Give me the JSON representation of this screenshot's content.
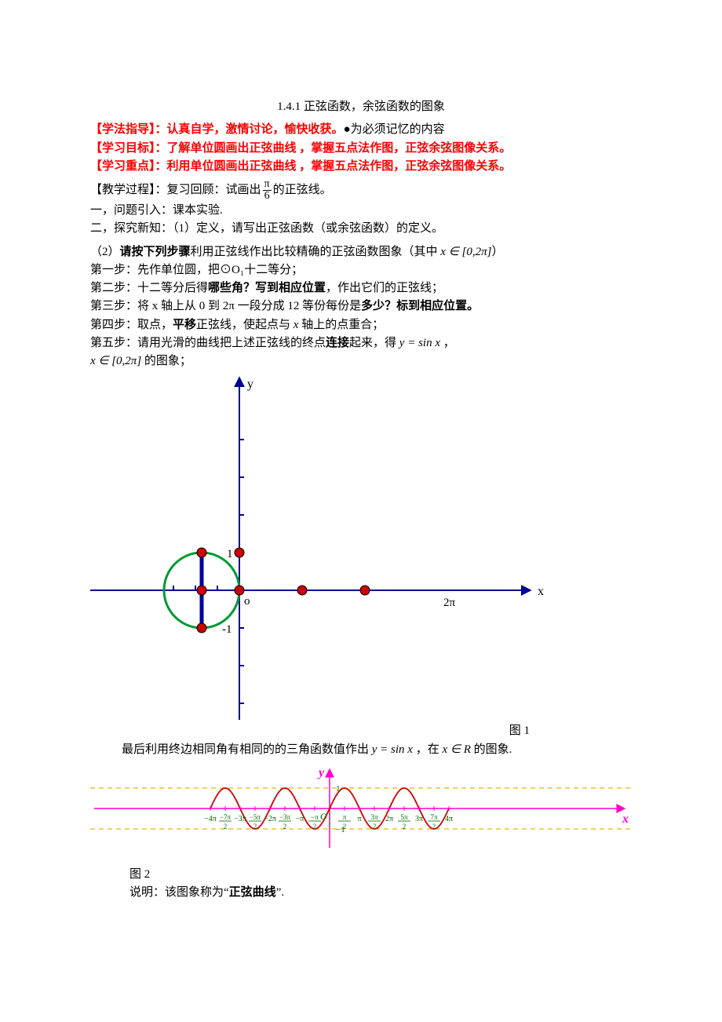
{
  "title": "1.4.1 正弦函数，余弦函数的图象",
  "header": {
    "method_guide_label": "【学法指导】：",
    "method_guide_text": "认真自学，激情讨论，愉快收获。",
    "memory_mark": "●",
    "memory_text": "为必须记忆的内容",
    "objective_label": "【学习目标】：",
    "objective_text": "了解单位圆画出正弦曲线 ，掌握五点法作图，正弦余弦图像关系。",
    "focus_label": "【学习重点】：",
    "focus_text": "利用单位圆画出正弦曲线 ，掌握五点法作图，正弦余弦图像关系。",
    "process_label": "【教学过程】：",
    "process_text_a": "复习回顾：试画出",
    "process_text_b": "的正弦线。",
    "frac_num": "π",
    "frac_den": "6",
    "intro1": "一，问题引入：课本实验.",
    "intro2": "二，探究新知：（1）定义，请写出正弦函数（或余弦函数）的定义。"
  },
  "steps": {
    "lead_a": "（2）",
    "lead_b": "请按下列步骤",
    "lead_c": "利用正弦线作出比较精确的正弦函数图象（其中 ",
    "lead_d": "）",
    "domain1": "x ∈ [0,2π]",
    "s1": "第一步：先作单位圆，把⊙O₁十二等分；",
    "s2a": "第二步：十二等分后得",
    "s2b": "哪些角？写到相应位置",
    "s2c": "，作出它们的正弦线；",
    "s3a": "第三步：将 x 轴上从 0 到 2π 一段分成 12 等份每份是",
    "s3b": "多少？标到相应位置。",
    "s4a": "第四步：取点，",
    "s4b": "平移",
    "s4c": "正弦线，使起点与 ",
    "s4d": " 轴上的点重合；",
    "s4x": "x",
    "s5a": "第五步：请用光滑的曲线把上述正弦线的终点",
    "s5b": "连接",
    "s5c": "起来，得 ",
    "s5eq": "y = sin x",
    "s5d": " ，",
    "s6a": " 的图象；",
    "domain2": "x ∈ [0,2π]"
  },
  "figure1": {
    "caption": "图 1",
    "axis_y": "y",
    "axis_x": "x",
    "label_o": "o",
    "label_1": "1",
    "label_m1": "-1",
    "label_2pi": "2π",
    "colors": {
      "axis": "#000099",
      "circle": "#009933",
      "point_fill": "#cc0000",
      "point_stroke": "#000000",
      "origin_fill": "#ffffff"
    }
  },
  "after_fig1": {
    "text_a": "最后利用终边相同角有相同的的三角函数值作出 ",
    "eq": "y = sin x",
    "text_b": " ，在 ",
    "domain": "x ∈ R",
    "text_c": " 的图象."
  },
  "figure2": {
    "caption": "图 2",
    "desc_a": "说明：该图象称为“",
    "desc_b": "正弦曲线",
    "desc_c": "”.",
    "axis_y": "y",
    "axis_x": "x",
    "label_O": "O",
    "label_1": "1",
    "label_m1": "-1",
    "x_labels": [
      "-4π",
      "-7π/2",
      "-3π",
      "-5π/2",
      "-2π",
      "-3π/2",
      "-π",
      "-π/2",
      "π/2",
      "π",
      "3π/2",
      "2π",
      "5π/2",
      "3π",
      "7π/2",
      "4π"
    ],
    "colors": {
      "axis": "#ff00cc",
      "curve": "#d60000",
      "dash": "#e6b800",
      "label": "#006600"
    }
  }
}
